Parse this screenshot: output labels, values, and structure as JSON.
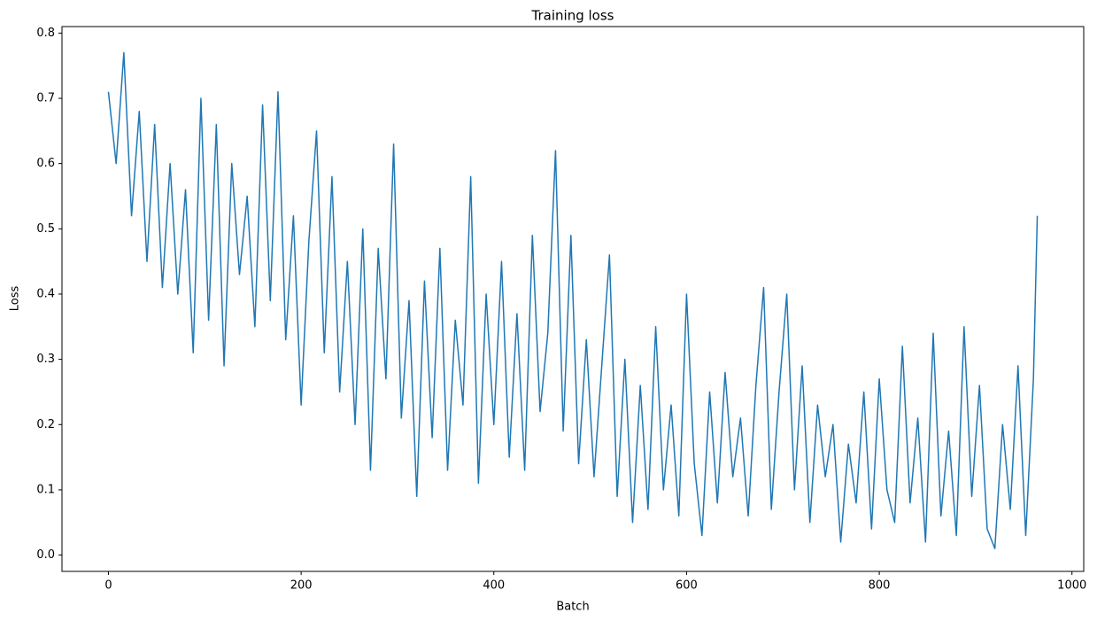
{
  "chart_data": {
    "type": "line",
    "title": "Training loss",
    "xlabel": "Batch",
    "ylabel": "Loss",
    "x": [
      0,
      8,
      16,
      24,
      32,
      40,
      48,
      56,
      64,
      72,
      80,
      88,
      96,
      104,
      112,
      120,
      128,
      136,
      144,
      152,
      160,
      168,
      176,
      184,
      192,
      200,
      208,
      216,
      224,
      232,
      240,
      248,
      256,
      264,
      272,
      280,
      288,
      296,
      304,
      312,
      320,
      328,
      336,
      344,
      352,
      360,
      368,
      376,
      384,
      392,
      400,
      408,
      416,
      424,
      432,
      440,
      448,
      456,
      464,
      472,
      480,
      488,
      496,
      504,
      512,
      520,
      528,
      536,
      544,
      552,
      560,
      568,
      576,
      584,
      592,
      600,
      608,
      616,
      624,
      632,
      640,
      648,
      656,
      664,
      672,
      680,
      688,
      696,
      704,
      712,
      720,
      728,
      736,
      744,
      752,
      760,
      768,
      776,
      784,
      792,
      800,
      808,
      816,
      824,
      832,
      840,
      848,
      856,
      864,
      872,
      880,
      888,
      896,
      904,
      912,
      920,
      928,
      936,
      944,
      952,
      960,
      964
    ],
    "series": [
      {
        "name": "Loss",
        "color": "#1f77b4",
        "values": [
          0.71,
          0.6,
          0.77,
          0.52,
          0.68,
          0.45,
          0.66,
          0.41,
          0.6,
          0.4,
          0.56,
          0.31,
          0.7,
          0.36,
          0.66,
          0.29,
          0.6,
          0.43,
          0.55,
          0.35,
          0.69,
          0.39,
          0.71,
          0.33,
          0.52,
          0.23,
          0.48,
          0.65,
          0.31,
          0.58,
          0.25,
          0.45,
          0.2,
          0.5,
          0.13,
          0.47,
          0.27,
          0.63,
          0.21,
          0.39,
          0.09,
          0.42,
          0.18,
          0.47,
          0.13,
          0.36,
          0.23,
          0.58,
          0.11,
          0.4,
          0.2,
          0.45,
          0.15,
          0.37,
          0.13,
          0.49,
          0.22,
          0.34,
          0.62,
          0.19,
          0.49,
          0.14,
          0.33,
          0.12,
          0.29,
          0.46,
          0.09,
          0.3,
          0.05,
          0.26,
          0.07,
          0.35,
          0.1,
          0.23,
          0.06,
          0.4,
          0.14,
          0.03,
          0.25,
          0.08,
          0.28,
          0.12,
          0.21,
          0.06,
          0.26,
          0.41,
          0.07,
          0.25,
          0.4,
          0.1,
          0.29,
          0.05,
          0.23,
          0.12,
          0.2,
          0.02,
          0.17,
          0.08,
          0.25,
          0.04,
          0.27,
          0.1,
          0.05,
          0.32,
          0.08,
          0.21,
          0.02,
          0.34,
          0.06,
          0.19,
          0.03,
          0.35,
          0.09,
          0.26,
          0.04,
          0.01,
          0.2,
          0.07,
          0.29,
          0.03,
          0.27,
          0.52
        ]
      }
    ],
    "xlim": [
      -48.2,
      1012.2
    ],
    "ylim": [
      -0.025,
      0.81
    ],
    "xticks": [
      0,
      200,
      400,
      600,
      800,
      1000
    ],
    "yticks": [
      {
        "value": 0,
        "label": "0.0"
      },
      0.1,
      0.2,
      0.3,
      0.4,
      0.5,
      0.6,
      0.7,
      0.8
    ]
  }
}
